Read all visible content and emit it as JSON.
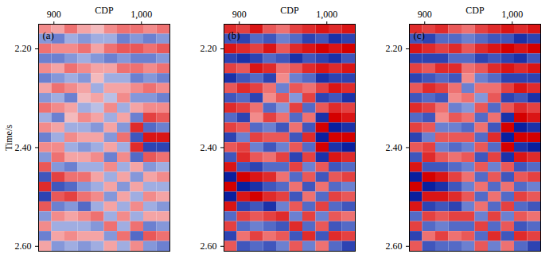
{
  "chart_data": [
    {
      "type": "heatmap",
      "annotation": "(a)",
      "xlabel": "CDP",
      "ylabel": "Time/s",
      "xlim": [
        882.5,
        1032.5
      ],
      "ylim": [
        2.15,
        2.61
      ],
      "xticks": [
        900,
        1000
      ],
      "yticks": [
        2.2,
        2.4,
        2.6
      ],
      "zlim": [
        -1,
        1
      ],
      "x": [
        890,
        905,
        920,
        935,
        950,
        965,
        980,
        995,
        1010,
        1025
      ],
      "y": [
        2.16,
        2.18,
        2.2,
        2.22,
        2.24,
        2.26,
        2.28,
        2.3,
        2.32,
        2.34,
        2.36,
        2.38,
        2.4,
        2.42,
        2.44,
        2.46,
        2.48,
        2.5,
        2.52,
        2.54,
        2.56,
        2.58,
        2.6
      ],
      "values": [
        [
          0.4,
          0.3,
          0.5,
          0.3,
          0.2,
          0.4,
          0.5,
          0.5,
          0.4,
          0.5
        ],
        [
          -0.4,
          -0.5,
          -0.3,
          -0.4,
          -0.3,
          -0.3,
          -0.5,
          -0.4,
          -0.5,
          -0.4
        ],
        [
          0.5,
          0.4,
          0.4,
          0.5,
          0.3,
          0.5,
          0.6,
          0.6,
          0.5,
          0.6
        ],
        [
          -0.5,
          -0.5,
          -0.4,
          -0.3,
          -0.4,
          -0.5,
          -0.4,
          -0.5,
          -0.5,
          -0.4
        ],
        [
          0.4,
          0.3,
          0.5,
          0.4,
          0.3,
          0.3,
          0.5,
          0.5,
          0.4,
          0.5
        ],
        [
          -0.5,
          -0.4,
          -0.3,
          -0.4,
          0.2,
          -0.3,
          -0.3,
          -0.5,
          -0.4,
          -0.5
        ],
        [
          0.3,
          0.5,
          0.4,
          0.3,
          -0.3,
          0.3,
          0.3,
          0.4,
          0.5,
          0.4
        ],
        [
          -0.4,
          -0.3,
          -0.5,
          0.2,
          0.3,
          -0.2,
          0.4,
          -0.4,
          -0.4,
          -0.5
        ],
        [
          0.5,
          0.4,
          0.3,
          -0.3,
          -0.2,
          0.4,
          -0.3,
          0.3,
          0.4,
          0.4
        ],
        [
          -0.3,
          -0.5,
          0.2,
          0.4,
          0.3,
          -0.3,
          0.3,
          -0.5,
          0.7,
          0.6
        ],
        [
          0.4,
          0.3,
          -0.3,
          -0.3,
          -0.4,
          0.3,
          -0.4,
          0.8,
          -0.6,
          -0.5
        ],
        [
          -0.5,
          -0.3,
          0.4,
          0.3,
          0.3,
          -0.4,
          0.5,
          -0.7,
          0.9,
          0.9
        ],
        [
          0.4,
          0.4,
          -0.3,
          -0.4,
          -0.3,
          0.3,
          -0.3,
          0.8,
          -0.8,
          -0.8
        ],
        [
          -0.4,
          0.5,
          0.3,
          0.3,
          0.4,
          -0.5,
          0.4,
          -0.6,
          0.6,
          0.5
        ],
        [
          0.6,
          -0.4,
          -0.5,
          -0.3,
          -0.3,
          0.4,
          -0.3,
          0.3,
          -0.4,
          -0.3
        ],
        [
          -0.7,
          0.7,
          0.5,
          0.5,
          0.3,
          -0.3,
          0.3,
          -0.4,
          0.3,
          0.4
        ],
        [
          0.8,
          -0.7,
          -0.6,
          -0.4,
          -0.3,
          0.3,
          -0.4,
          0.3,
          -0.3,
          -0.3
        ],
        [
          -0.8,
          0.6,
          0.7,
          0.5,
          0.4,
          -0.4,
          0.3,
          -0.3,
          0.4,
          0.3
        ],
        [
          0.6,
          -0.5,
          -0.4,
          -0.6,
          -0.3,
          0.3,
          -0.3,
          0.4,
          -0.3,
          -0.4
        ],
        [
          -0.4,
          0.4,
          0.3,
          0.4,
          0.5,
          -0.3,
          0.4,
          -0.3,
          0.3,
          0.3
        ],
        [
          0.4,
          -0.3,
          -0.3,
          -0.3,
          -0.4,
          0.5,
          -0.3,
          0.5,
          -0.5,
          -0.4
        ],
        [
          -0.5,
          0.3,
          0.4,
          0.3,
          0.3,
          -0.4,
          0.5,
          -0.6,
          0.6,
          0.5
        ],
        [
          0.3,
          -0.4,
          -0.3,
          -0.4,
          -0.3,
          0.3,
          -0.3,
          0.4,
          -0.4,
          -0.5
        ]
      ]
    },
    {
      "type": "heatmap",
      "annotation": "(b)",
      "xlabel": "CDP",
      "xlim": [
        882.5,
        1032.5
      ],
      "ylim": [
        2.15,
        2.61
      ],
      "xticks": [
        900,
        1000
      ],
      "yticks": [
        2.2,
        2.4,
        2.6
      ],
      "zlim": [
        -1,
        1
      ],
      "x": [
        890,
        905,
        920,
        935,
        950,
        965,
        980,
        995,
        1010,
        1025
      ],
      "y": [
        2.16,
        2.18,
        2.2,
        2.22,
        2.24,
        2.26,
        2.28,
        2.3,
        2.32,
        2.34,
        2.36,
        2.38,
        2.4,
        2.42,
        2.44,
        2.46,
        2.48,
        2.5,
        2.52,
        2.54,
        2.56,
        2.58,
        2.6
      ],
      "values": [
        [
          0.8,
          0.7,
          0.9,
          0.6,
          0.5,
          0.7,
          0.8,
          0.9,
          0.8,
          0.9
        ],
        [
          -0.7,
          -0.8,
          -0.6,
          -0.7,
          -0.5,
          -0.6,
          -0.8,
          -0.7,
          -0.9,
          -0.8
        ],
        [
          0.9,
          0.8,
          0.7,
          0.9,
          0.6,
          0.8,
          0.9,
          1.0,
          0.9,
          1.0
        ],
        [
          -0.8,
          -0.9,
          -0.8,
          -0.6,
          -0.7,
          -0.9,
          -0.7,
          -0.8,
          -0.9,
          -0.7
        ],
        [
          0.7,
          0.6,
          0.9,
          0.8,
          0.5,
          0.6,
          0.8,
          0.9,
          0.8,
          0.9
        ],
        [
          -0.9,
          -0.7,
          -0.6,
          -0.8,
          0.4,
          -0.5,
          -0.6,
          -0.9,
          -0.8,
          -0.8
        ],
        [
          0.6,
          0.8,
          0.7,
          0.5,
          -0.5,
          0.6,
          0.5,
          0.7,
          0.9,
          0.8
        ],
        [
          -0.7,
          -0.6,
          -0.8,
          0.4,
          0.6,
          -0.4,
          0.7,
          -0.8,
          -0.7,
          -0.9
        ],
        [
          0.8,
          0.7,
          0.5,
          -0.6,
          -0.4,
          0.7,
          -0.6,
          0.6,
          0.8,
          0.7
        ],
        [
          -0.6,
          -0.8,
          0.4,
          0.7,
          0.5,
          -0.6,
          0.5,
          -0.9,
          1.0,
          0.9
        ],
        [
          0.7,
          0.6,
          -0.6,
          -0.5,
          -0.7,
          0.5,
          -0.7,
          1.0,
          -1.0,
          -0.9
        ],
        [
          -0.8,
          -0.5,
          0.7,
          0.6,
          0.6,
          -0.7,
          0.8,
          -1.0,
          1.0,
          1.0
        ],
        [
          0.6,
          0.7,
          -0.5,
          -0.7,
          -0.5,
          0.6,
          -0.6,
          1.0,
          -0.9,
          -1.0
        ],
        [
          -0.7,
          0.8,
          0.6,
          0.5,
          0.7,
          -0.8,
          0.7,
          -0.9,
          0.9,
          0.8
        ],
        [
          0.9,
          -0.7,
          -0.8,
          -0.6,
          -0.6,
          0.7,
          -0.5,
          0.6,
          -0.7,
          -0.6
        ],
        [
          -1.0,
          1.0,
          0.9,
          0.8,
          0.5,
          -0.6,
          0.6,
          -0.7,
          0.6,
          0.7
        ],
        [
          1.0,
          -1.0,
          -0.9,
          -0.7,
          -0.6,
          0.5,
          -0.7,
          0.5,
          -0.6,
          -0.5
        ],
        [
          -1.0,
          0.9,
          1.0,
          0.8,
          0.7,
          -0.7,
          0.5,
          -0.6,
          0.7,
          0.6
        ],
        [
          0.9,
          -0.8,
          -0.7,
          -0.9,
          -0.5,
          0.6,
          -0.6,
          0.7,
          -0.6,
          -0.7
        ],
        [
          -0.6,
          0.7,
          0.6,
          0.7,
          0.8,
          -0.5,
          0.7,
          -0.5,
          0.6,
          0.5
        ],
        [
          0.7,
          -0.6,
          -0.5,
          -0.6,
          -0.7,
          0.8,
          -0.6,
          0.6,
          -0.7,
          -0.6
        ],
        [
          -0.8,
          0.5,
          0.7,
          0.5,
          0.6,
          -0.7,
          0.8,
          -0.7,
          0.8,
          0.7
        ],
        [
          0.6,
          -0.7,
          -0.6,
          -0.7,
          -0.5,
          0.6,
          -0.5,
          0.5,
          -0.6,
          -0.8
        ]
      ]
    },
    {
      "type": "heatmap",
      "annotation": "(c)",
      "xlabel": "CDP",
      "xlim": [
        882.5,
        1032.5
      ],
      "ylim": [
        2.15,
        2.61
      ],
      "xticks": [
        900,
        1000
      ],
      "yticks": [
        2.2,
        2.4,
        2.6
      ],
      "zlim": [
        -1,
        1
      ],
      "x": [
        890,
        905,
        920,
        935,
        950,
        965,
        980,
        995,
        1010,
        1025
      ],
      "y": [
        2.16,
        2.18,
        2.2,
        2.22,
        2.24,
        2.26,
        2.28,
        2.3,
        2.32,
        2.34,
        2.36,
        2.38,
        2.4,
        2.42,
        2.44,
        2.46,
        2.48,
        2.5,
        2.52,
        2.54,
        2.56,
        2.58,
        2.6
      ],
      "values": [
        [
          0.8,
          0.7,
          0.8,
          0.6,
          0.5,
          0.7,
          0.8,
          0.9,
          0.8,
          0.9
        ],
        [
          -0.7,
          -0.8,
          -0.6,
          -0.6,
          -0.5,
          -0.6,
          -0.7,
          -0.7,
          -0.9,
          -0.8
        ],
        [
          0.9,
          0.8,
          0.7,
          0.8,
          0.6,
          0.8,
          0.9,
          1.0,
          0.9,
          1.0
        ],
        [
          -0.8,
          -0.8,
          -0.8,
          -0.6,
          -0.6,
          -0.8,
          -0.7,
          -0.8,
          -0.9,
          -0.7
        ],
        [
          0.7,
          0.6,
          0.8,
          0.8,
          0.5,
          0.6,
          0.8,
          0.9,
          0.8,
          0.9
        ],
        [
          -0.8,
          -0.7,
          -0.6,
          -0.7,
          0.4,
          -0.5,
          -0.6,
          -0.8,
          -0.8,
          -0.8
        ],
        [
          0.6,
          0.8,
          0.7,
          0.5,
          -0.5,
          0.5,
          0.5,
          0.7,
          0.9,
          0.8
        ],
        [
          -0.7,
          -0.6,
          -0.7,
          0.4,
          0.5,
          -0.4,
          0.6,
          -0.8,
          -0.7,
          -0.9
        ],
        [
          0.8,
          0.7,
          0.5,
          -0.5,
          -0.4,
          0.6,
          -0.6,
          0.6,
          0.8,
          0.7
        ],
        [
          -0.6,
          -0.7,
          0.4,
          0.6,
          0.5,
          -0.6,
          0.5,
          -0.9,
          1.0,
          0.9
        ],
        [
          0.7,
          0.6,
          -0.5,
          -0.5,
          -0.6,
          0.5,
          -0.7,
          1.0,
          -1.0,
          -0.9
        ],
        [
          -0.8,
          -0.5,
          0.6,
          0.6,
          0.6,
          -0.6,
          0.8,
          -1.0,
          1.0,
          1.0
        ],
        [
          0.6,
          0.7,
          -0.5,
          -0.6,
          -0.5,
          0.6,
          -0.6,
          1.0,
          -0.9,
          -1.0
        ],
        [
          -0.7,
          0.8,
          0.6,
          0.5,
          0.6,
          -0.7,
          0.7,
          -0.9,
          0.9,
          0.8
        ],
        [
          0.9,
          -0.7,
          -0.7,
          -0.6,
          -0.5,
          0.6,
          -0.5,
          0.6,
          -0.7,
          -0.6
        ],
        [
          -1.0,
          1.0,
          0.9,
          0.7,
          0.5,
          -0.6,
          0.6,
          -0.7,
          0.6,
          0.7
        ],
        [
          1.0,
          -1.0,
          -0.9,
          -0.7,
          -0.5,
          0.5,
          -0.6,
          0.5,
          -0.6,
          -0.5
        ],
        [
          -1.0,
          0.9,
          0.9,
          0.8,
          0.6,
          -0.6,
          0.5,
          -0.6,
          0.7,
          0.6
        ],
        [
          0.9,
          -0.8,
          -0.7,
          -0.8,
          -0.5,
          0.5,
          -0.6,
          0.7,
          -0.6,
          -0.7
        ],
        [
          -0.6,
          0.7,
          0.6,
          0.7,
          0.7,
          -0.5,
          0.7,
          -0.5,
          0.6,
          0.5
        ],
        [
          0.7,
          -0.6,
          -0.5,
          -0.6,
          -0.6,
          0.7,
          -0.6,
          0.6,
          -0.7,
          -0.6
        ],
        [
          -0.8,
          0.5,
          0.7,
          0.5,
          0.6,
          -0.6,
          0.8,
          -0.7,
          0.8,
          0.7
        ],
        [
          0.6,
          -0.7,
          -0.6,
          -0.6,
          -0.5,
          0.6,
          -0.5,
          0.5,
          -0.6,
          -0.8
        ]
      ]
    }
  ]
}
